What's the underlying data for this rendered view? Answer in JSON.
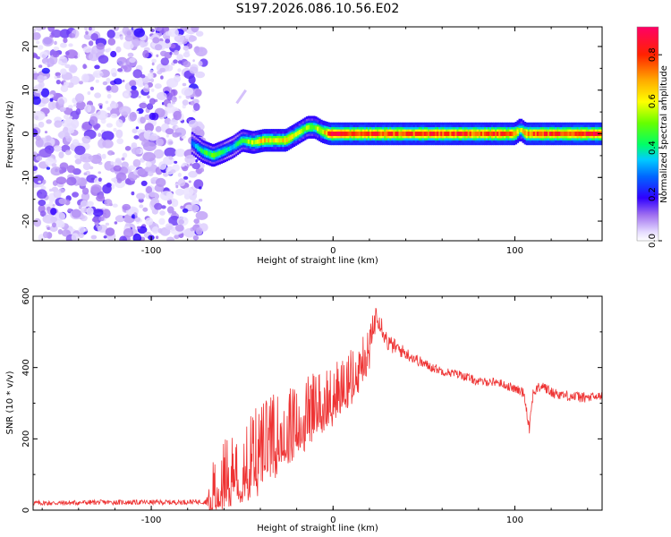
{
  "figure_title": "S197.2026.086.10.56.E02",
  "chart_data": [
    {
      "type": "heatmap",
      "title": "S197.2026.086.10.56.E02",
      "xlabel": "Height of straight line (km)",
      "ylabel": "Frequency (Hz)",
      "xlim": [
        -165,
        148
      ],
      "ylim": [
        -24.5,
        24.5
      ],
      "xticks": [
        -100,
        0,
        100
      ],
      "xticklabels": [
        "-100",
        "0",
        "100"
      ],
      "yticks": [
        -20,
        -10,
        0,
        10,
        20
      ],
      "yticklabels": [
        "-20",
        "-10",
        "0",
        "10",
        "20"
      ],
      "noise_region_x": [
        -165,
        -75
      ],
      "tone_start_x": -78,
      "ridge": {
        "x": [
          -78,
          -72,
          -66,
          -60,
          -55,
          -50,
          -44,
          -38,
          -32,
          -26,
          -20,
          -14,
          -10,
          -6,
          -2,
          0,
          10,
          30,
          60,
          90,
          100,
          103,
          106,
          110,
          148
        ],
        "freq_hz": [
          -2,
          -4,
          -5,
          -4,
          -3,
          -1.5,
          -2,
          -1.5,
          -1.5,
          -1.5,
          0,
          1.5,
          1.5,
          0.5,
          0,
          0,
          0,
          0,
          0,
          0,
          0,
          1,
          0,
          0,
          0
        ],
        "amplitude": [
          0.3,
          0.45,
          0.55,
          0.45,
          0.35,
          0.5,
          0.6,
          0.7,
          0.65,
          0.7,
          0.6,
          0.55,
          0.55,
          0.65,
          0.85,
          0.9,
          0.85,
          0.85,
          0.85,
          0.85,
          0.8,
          0.55,
          0.8,
          0.85,
          0.9
        ]
      },
      "colorbar": {
        "label": "Normalized spectral amplitude",
        "range": [
          0,
          0.92
        ],
        "ticks": [
          0.0,
          0.2,
          0.4,
          0.6,
          0.8
        ],
        "ticklabels": [
          "0.0",
          "0.2",
          "0.4",
          "0.6",
          "0.8"
        ]
      }
    },
    {
      "type": "line",
      "xlabel": "Height of straight line (km)",
      "ylabel": "SNR (10 * v/v)",
      "xlim": [
        -165,
        148
      ],
      "ylim": [
        0,
        600
      ],
      "xticks": [
        -100,
        0,
        100
      ],
      "xticklabels": [
        "-100",
        "0",
        "100"
      ],
      "yticks": [
        0,
        200,
        400,
        600
      ],
      "yticklabels": [
        "0",
        "200",
        "400",
        "600"
      ],
      "series": [
        {
          "name": "SNR",
          "color": "#ee3333",
          "x": [
            -165,
            -150,
            -130,
            -110,
            -90,
            -70,
            -66,
            -60,
            -50,
            -40,
            -30,
            -20,
            -10,
            0,
            10,
            20,
            24,
            30,
            40,
            50,
            60,
            70,
            80,
            90,
            100,
            105,
            108,
            110,
            115,
            120,
            130,
            140,
            148
          ],
          "y": [
            20,
            20,
            22,
            22,
            22,
            24,
            60,
            110,
            150,
            180,
            230,
            260,
            300,
            330,
            380,
            450,
            560,
            470,
            440,
            410,
            390,
            380,
            360,
            360,
            340,
            330,
            230,
            330,
            350,
            330,
            320,
            315,
            320
          ],
          "noise_amp": [
            7,
            7,
            7,
            7,
            7,
            7,
            80,
            90,
            110,
            120,
            110,
            100,
            90,
            80,
            70,
            60,
            40,
            25,
            18,
            15,
            12,
            12,
            12,
            12,
            12,
            15,
            20,
            15,
            15,
            15,
            15,
            15,
            12
          ]
        }
      ]
    }
  ]
}
